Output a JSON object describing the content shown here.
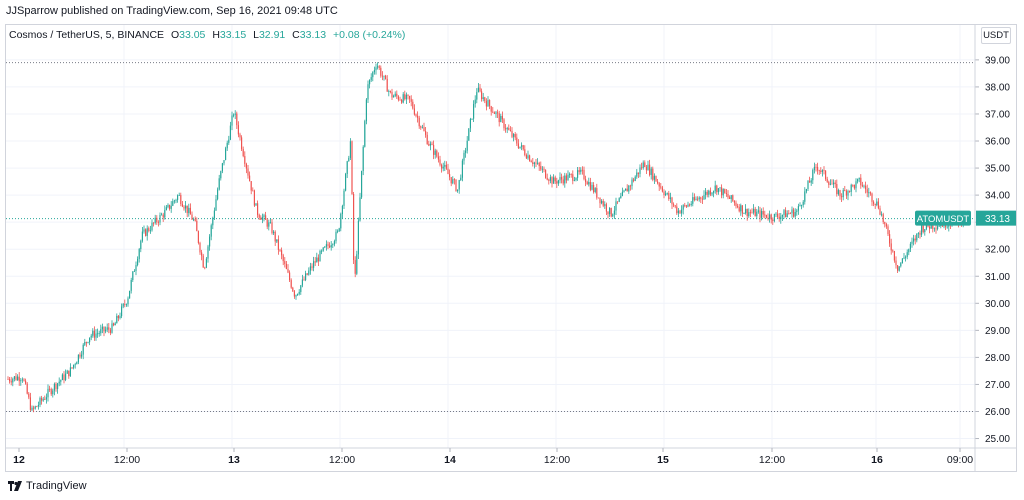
{
  "header": {
    "publish_line": "JJSparrow published on TradingView.com, Sep 16, 2021 09:48 UTC"
  },
  "legend": {
    "symbol": "Cosmos / TetherUS, 5, BINANCE",
    "o_label": "O",
    "o_value": "33.05",
    "h_label": "H",
    "h_value": "33.15",
    "l_label": "L",
    "l_value": "32.91",
    "c_label": "C",
    "c_value": "33.13",
    "change": "+0.08 (+0.24%)"
  },
  "currency_button": "USDT",
  "price_badge": {
    "label": "ATOMUSDT",
    "value": "33.13"
  },
  "footer": {
    "brand": "TradingView"
  },
  "colors": {
    "up": "#26a69a",
    "down": "#ef5350",
    "grid": "#f0f3fa",
    "last_line": "#26a69a"
  },
  "chart_data": {
    "type": "candlestick",
    "interval": "5",
    "y_ticks": [
      "25.00",
      "26.00",
      "27.00",
      "28.00",
      "29.00",
      "30.00",
      "31.00",
      "32.00",
      "33.00",
      "34.00",
      "35.00",
      "36.00",
      "37.00",
      "38.00",
      "39.00"
    ],
    "ylim": [
      24.65,
      39.55
    ],
    "x_ticks": [
      "12",
      "12:00",
      "13",
      "12:00",
      "14",
      "12:00",
      "15",
      "12:00",
      "16",
      "09:00"
    ],
    "last_price": 33.13,
    "high_line": 38.9,
    "low_line": 26.0,
    "path": [
      [
        0,
        27.2
      ],
      [
        0.015,
        27.3
      ],
      [
        0.025,
        26.0
      ],
      [
        0.05,
        27.0
      ],
      [
        0.065,
        27.5
      ],
      [
        0.085,
        28.8
      ],
      [
        0.11,
        29.1
      ],
      [
        0.125,
        30.2
      ],
      [
        0.14,
        32.5
      ],
      [
        0.165,
        33.4
      ],
      [
        0.178,
        34.0
      ],
      [
        0.195,
        33.0
      ],
      [
        0.205,
        31.3
      ],
      [
        0.22,
        34.4
      ],
      [
        0.236,
        37.1
      ],
      [
        0.26,
        33.4
      ],
      [
        0.275,
        32.8
      ],
      [
        0.3,
        30.3
      ],
      [
        0.32,
        31.5
      ],
      [
        0.345,
        32.6
      ],
      [
        0.358,
        36.0
      ],
      [
        0.362,
        30.5
      ],
      [
        0.375,
        37.9
      ],
      [
        0.385,
        38.9
      ],
      [
        0.4,
        37.7
      ],
      [
        0.42,
        37.5
      ],
      [
        0.44,
        35.9
      ],
      [
        0.47,
        34.2
      ],
      [
        0.49,
        37.9
      ],
      [
        0.51,
        37.0
      ],
      [
        0.535,
        35.8
      ],
      [
        0.55,
        35.2
      ],
      [
        0.57,
        34.5
      ],
      [
        0.6,
        34.8
      ],
      [
        0.63,
        33.3
      ],
      [
        0.665,
        35.2
      ],
      [
        0.7,
        33.4
      ],
      [
        0.74,
        34.3
      ],
      [
        0.77,
        33.4
      ],
      [
        0.8,
        33.2
      ],
      [
        0.825,
        33.4
      ],
      [
        0.845,
        35.1
      ],
      [
        0.87,
        34.0
      ],
      [
        0.89,
        34.5
      ],
      [
        0.91,
        33.6
      ],
      [
        0.93,
        31.3
      ],
      [
        0.955,
        32.8
      ],
      [
        1.0,
        33.13
      ]
    ]
  }
}
